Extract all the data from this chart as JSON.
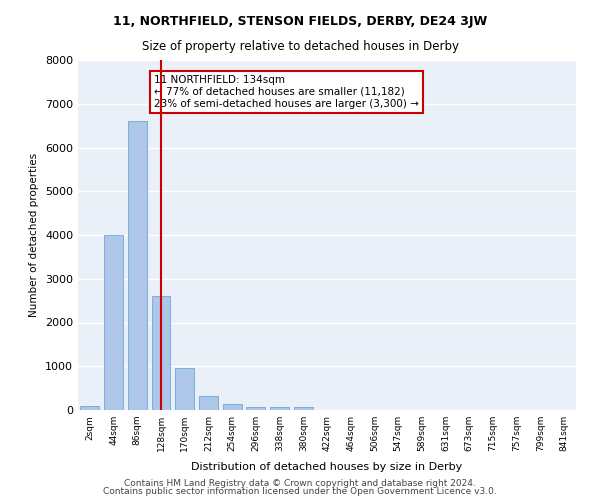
{
  "title1": "11, NORTHFIELD, STENSON FIELDS, DERBY, DE24 3JW",
  "title2": "Size of property relative to detached houses in Derby",
  "xlabel": "Distribution of detached houses by size in Derby",
  "ylabel": "Number of detached properties",
  "categories": [
    "2sqm",
    "44sqm",
    "86sqm",
    "128sqm",
    "170sqm",
    "212sqm",
    "254sqm",
    "296sqm",
    "338sqm",
    "380sqm",
    "422sqm",
    "464sqm",
    "506sqm",
    "547sqm",
    "589sqm",
    "631sqm",
    "673sqm",
    "715sqm",
    "757sqm",
    "799sqm",
    "841sqm"
  ],
  "values": [
    90,
    4000,
    6600,
    2600,
    950,
    320,
    130,
    80,
    60,
    60,
    0,
    0,
    0,
    0,
    0,
    0,
    0,
    0,
    0,
    0,
    0
  ],
  "bar_color": "#aec6e8",
  "bar_edge_color": "#5b9bd5",
  "red_line_index": 3,
  "annotation_text": "11 NORTHFIELD: 134sqm\n← 77% of detached houses are smaller (11,182)\n23% of semi-detached houses are larger (3,300) →",
  "annotation_box_color": "white",
  "annotation_box_edge_color": "#cc0000",
  "red_line_color": "#cc0000",
  "ylim": [
    0,
    8000
  ],
  "yticks": [
    0,
    1000,
    2000,
    3000,
    4000,
    5000,
    6000,
    7000,
    8000
  ],
  "bg_color": "#eaf0f8",
  "grid_color": "white",
  "footer1": "Contains HM Land Registry data © Crown copyright and database right 2024.",
  "footer2": "Contains public sector information licensed under the Open Government Licence v3.0."
}
